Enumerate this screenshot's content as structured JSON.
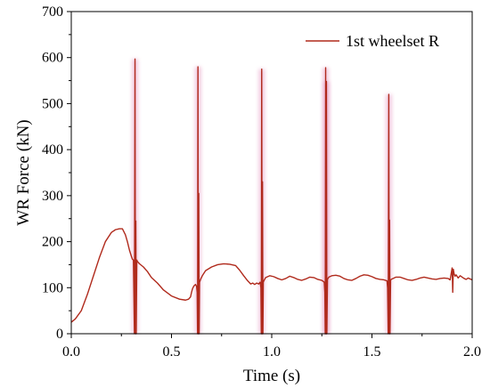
{
  "chart_data": {
    "type": "line",
    "xlabel": "Time (s)",
    "ylabel": "WR Force (kN)",
    "xlim": [
      0.0,
      2.0
    ],
    "ylim": [
      0,
      700
    ],
    "xticks": [
      0.0,
      0.5,
      1.0,
      1.5,
      2.0
    ],
    "xtick_labels": [
      "0.0",
      "0.5",
      "1.0",
      "1.5",
      "2.0"
    ],
    "yticks": [
      0,
      100,
      200,
      300,
      400,
      500,
      600,
      700
    ],
    "ytick_labels": [
      "0",
      "100",
      "200",
      "300",
      "400",
      "500",
      "600",
      "700"
    ],
    "grid": false,
    "legend_position": "top-right",
    "colors": {
      "series": "#b02a1c",
      "spike_glow": "#e8a0c8"
    },
    "series": [
      {
        "name": "1st wheelset R",
        "x": [
          0.0,
          0.02,
          0.05,
          0.08,
          0.11,
          0.14,
          0.17,
          0.2,
          0.22,
          0.24,
          0.255,
          0.27,
          0.28,
          0.29,
          0.3,
          0.305,
          0.31,
          0.315,
          0.318,
          0.32,
          0.322,
          0.324,
          0.327,
          0.33,
          0.34,
          0.36,
          0.38,
          0.4,
          0.43,
          0.46,
          0.5,
          0.54,
          0.57,
          0.585,
          0.595,
          0.6,
          0.605,
          0.612,
          0.62,
          0.625,
          0.628,
          0.63,
          0.632,
          0.634,
          0.636,
          0.638,
          0.64,
          0.645,
          0.655,
          0.67,
          0.7,
          0.73,
          0.76,
          0.79,
          0.82,
          0.84,
          0.86,
          0.88,
          0.895,
          0.905,
          0.915,
          0.925,
          0.935,
          0.942,
          0.946,
          0.948,
          0.95,
          0.952,
          0.954,
          0.956,
          0.958,
          0.962,
          0.97,
          0.99,
          1.01,
          1.03,
          1.05,
          1.07,
          1.09,
          1.11,
          1.13,
          1.15,
          1.17,
          1.19,
          1.21,
          1.23,
          1.25,
          1.262,
          1.265,
          1.267,
          1.269,
          1.271,
          1.273,
          1.275,
          1.278,
          1.285,
          1.3,
          1.32,
          1.34,
          1.36,
          1.38,
          1.4,
          1.42,
          1.44,
          1.46,
          1.48,
          1.5,
          1.52,
          1.54,
          1.56,
          1.575,
          1.578,
          1.581,
          1.584,
          1.586,
          1.588,
          1.59,
          1.593,
          1.6,
          1.62,
          1.64,
          1.66,
          1.68,
          1.7,
          1.72,
          1.74,
          1.76,
          1.78,
          1.8,
          1.82,
          1.84,
          1.86,
          1.88,
          1.89,
          1.9,
          1.903,
          1.906,
          1.91,
          1.915,
          1.92,
          1.93,
          1.94,
          1.95,
          1.96,
          1.97,
          1.98,
          1.99,
          2.0
        ],
        "y": [
          25,
          32,
          50,
          85,
          125,
          165,
          200,
          220,
          226,
          228,
          228,
          215,
          200,
          182,
          168,
          162,
          160,
          0,
          597,
          0,
          245,
          0,
          160,
          157,
          152,
          145,
          135,
          122,
          110,
          95,
          82,
          75,
          73,
          75,
          80,
          90,
          98,
          104,
          107,
          103,
          90,
          0,
          580,
          0,
          305,
          0,
          112,
          118,
          127,
          137,
          145,
          150,
          152,
          151,
          148,
          138,
          126,
          115,
          108,
          110,
          107,
          110,
          108,
          112,
          100,
          0,
          575,
          0,
          330,
          0,
          112,
          116,
          122,
          126,
          124,
          120,
          117,
          120,
          125,
          122,
          118,
          116,
          119,
          123,
          122,
          118,
          116,
          112,
          90,
          0,
          578,
          0,
          548,
          0,
          118,
          123,
          126,
          127,
          125,
          120,
          117,
          116,
          120,
          125,
          128,
          127,
          124,
          120,
          118,
          117,
          115,
          100,
          0,
          520,
          0,
          247,
          0,
          117,
          119,
          123,
          123,
          120,
          117,
          116,
          118,
          121,
          123,
          121,
          119,
          118,
          120,
          121,
          120,
          117,
          143,
          90,
          140,
          130,
          125,
          128,
          121,
          126,
          123,
          120,
          118,
          121,
          119,
          117
        ]
      }
    ]
  }
}
